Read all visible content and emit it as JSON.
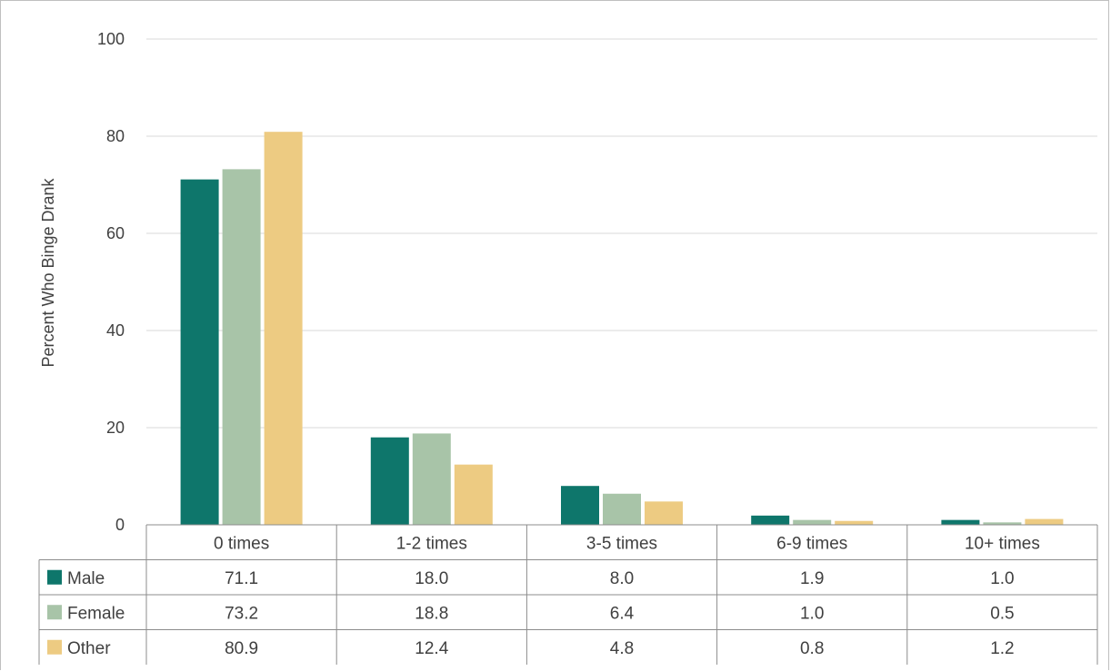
{
  "chart_data": {
    "type": "bar",
    "ylabel": "Percent Who Binge Drank",
    "ylim": [
      0,
      100
    ],
    "yticks": [
      0,
      20,
      40,
      60,
      80,
      100
    ],
    "grid": true,
    "legend": "data-table",
    "categories": [
      "0 times",
      "1-2 times",
      "3-5 times",
      "6-9 times",
      "10+ times"
    ],
    "series": [
      {
        "name": "Male",
        "color": "#0e766b",
        "values": [
          71.1,
          18.0,
          8.0,
          1.9,
          1.0
        ],
        "labels": [
          "71.1",
          "18.0",
          "8.0",
          "1.9",
          "1.0"
        ]
      },
      {
        "name": "Female",
        "color": "#a8c4a8",
        "values": [
          73.2,
          18.8,
          6.4,
          1.0,
          0.5
        ],
        "labels": [
          "73.2",
          "18.8",
          "6.4",
          "1.0",
          "0.5"
        ]
      },
      {
        "name": "Other",
        "color": "#edcb82",
        "values": [
          80.9,
          12.4,
          4.8,
          0.8,
          1.2
        ],
        "labels": [
          "80.9",
          "12.4",
          "4.8",
          "0.8",
          "1.2"
        ]
      }
    ]
  }
}
